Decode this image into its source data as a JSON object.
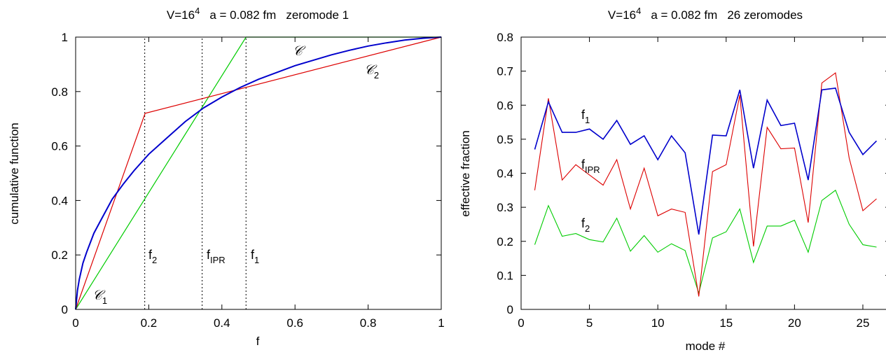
{
  "chart_data": [
    {
      "type": "line",
      "title": "V=16^4  a = 0.082 fm  zeromode 1",
      "title_parts": {
        "v": "V=16",
        "exp": "4",
        "rest": "a = 0.082 fm",
        "mode": "zeromode 1"
      },
      "xlabel": "f",
      "ylabel": "cumulative function",
      "xlim": [
        0,
        1
      ],
      "ylim": [
        0,
        1
      ],
      "xticks": [
        0,
        0.2,
        0.4,
        0.6,
        0.8,
        1
      ],
      "xtick_labels": [
        "0",
        "0.2",
        "0.4",
        "0.6",
        "0.8",
        "1"
      ],
      "yticks": [
        0,
        0.2,
        0.4,
        0.6,
        0.8,
        1
      ],
      "ytick_labels": [
        "0",
        "0.2",
        "0.4",
        "0.6",
        "0.8",
        "1"
      ],
      "series": [
        {
          "name": "𝒞",
          "color": "#0000cc",
          "x": [
            0,
            0.005,
            0.01,
            0.02,
            0.03,
            0.05,
            0.07,
            0.1,
            0.13,
            0.16,
            0.2,
            0.25,
            0.3,
            0.35,
            0.4,
            0.45,
            0.5,
            0.55,
            0.6,
            0.65,
            0.7,
            0.75,
            0.8,
            0.85,
            0.9,
            0.95,
            1.0
          ],
          "y": [
            0,
            0.07,
            0.11,
            0.17,
            0.21,
            0.28,
            0.33,
            0.405,
            0.46,
            0.51,
            0.57,
            0.63,
            0.69,
            0.74,
            0.78,
            0.815,
            0.845,
            0.87,
            0.895,
            0.915,
            0.935,
            0.952,
            0.967,
            0.979,
            0.989,
            0.996,
            1.0
          ]
        },
        {
          "name": "𝒞₁, 𝒞₂",
          "color": "#dd0000",
          "x": [
            0,
            0.19,
            1
          ],
          "y": [
            0,
            0.72,
            1
          ]
        },
        {
          "name": "",
          "color": "#00cc00",
          "x": [
            0,
            0.466,
            1
          ],
          "y": [
            0,
            1,
            1
          ]
        }
      ],
      "vlines": [
        {
          "x": 0.189,
          "label": "f",
          "sub": "2"
        },
        {
          "x": 0.346,
          "label": "f",
          "sub": "IPR"
        },
        {
          "x": 0.466,
          "label": "f",
          "sub": "1"
        }
      ],
      "curve_labels": [
        {
          "text": "𝒞",
          "sub": ""
        },
        {
          "text": "𝒞",
          "sub": "2"
        },
        {
          "text": "𝒞",
          "sub": "1"
        }
      ]
    },
    {
      "type": "line",
      "title": "V=16^4  a = 0.082 fm  26 zeromodes",
      "title_parts": {
        "v": "V=16",
        "exp": "4",
        "rest": "a = 0.082 fm",
        "mode": "26 zeromodes"
      },
      "xlabel": "mode #",
      "ylabel": "effective fraction",
      "xlim": [
        0,
        27
      ],
      "ylim": [
        0,
        0.8
      ],
      "xticks": [
        0,
        5,
        10,
        15,
        20,
        25
      ],
      "xtick_labels": [
        "0",
        "5",
        "10",
        "15",
        "20",
        "25"
      ],
      "yticks": [
        0,
        0.1,
        0.2,
        0.3,
        0.4,
        0.5,
        0.6,
        0.7,
        0.8
      ],
      "ytick_labels": [
        "0",
        "0.1",
        "0.2",
        "0.3",
        "0.4",
        "0.5",
        "0.6",
        "0.7",
        "0.8"
      ],
      "x": [
        1,
        2,
        3,
        4,
        5,
        6,
        7,
        8,
        9,
        10,
        11,
        12,
        13,
        14,
        15,
        16,
        17,
        18,
        19,
        20,
        21,
        22,
        23,
        24,
        25,
        26
      ],
      "series": [
        {
          "name": "f1",
          "label": "f",
          "sub": "1",
          "color": "#0000cc",
          "values": [
            0.47,
            0.61,
            0.52,
            0.52,
            0.53,
            0.5,
            0.555,
            0.485,
            0.51,
            0.44,
            0.51,
            0.46,
            0.22,
            0.512,
            0.51,
            0.645,
            0.415,
            0.615,
            0.54,
            0.547,
            0.38,
            0.645,
            0.65,
            0.52,
            0.455,
            0.495
          ]
        },
        {
          "name": "fIPR",
          "label": "f",
          "sub": "IPR",
          "color": "#dd0000",
          "values": [
            0.35,
            0.62,
            0.38,
            0.425,
            0.395,
            0.365,
            0.44,
            0.295,
            0.415,
            0.275,
            0.295,
            0.285,
            0.038,
            0.405,
            0.425,
            0.63,
            0.185,
            0.535,
            0.472,
            0.474,
            0.255,
            0.665,
            0.695,
            0.445,
            0.29,
            0.325
          ]
        },
        {
          "name": "f2",
          "label": "f",
          "sub": "2",
          "color": "#00cc00",
          "values": [
            0.19,
            0.305,
            0.215,
            0.223,
            0.205,
            0.198,
            0.268,
            0.171,
            0.217,
            0.168,
            0.193,
            0.173,
            0.048,
            0.21,
            0.228,
            0.295,
            0.138,
            0.245,
            0.245,
            0.262,
            0.168,
            0.32,
            0.35,
            0.25,
            0.19,
            0.183
          ]
        }
      ]
    }
  ]
}
